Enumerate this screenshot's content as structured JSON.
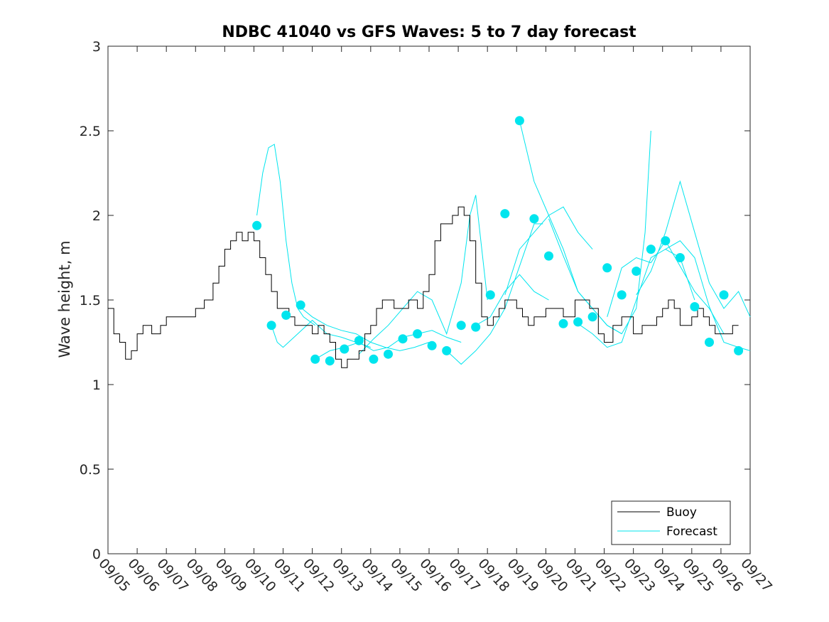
{
  "chart_data": {
    "type": "line",
    "title": "NDBC 41040 vs GFS Waves: 5 to 7 day forecast",
    "xlabel": "",
    "ylabel": "Wave height, m",
    "xlim": [
      0,
      22
    ],
    "ylim": [
      0,
      3
    ],
    "x_tick_labels": [
      "09/05",
      "09/06",
      "09/07",
      "09/08",
      "09/09",
      "09/10",
      "09/11",
      "09/12",
      "09/13",
      "09/14",
      "09/15",
      "09/16",
      "09/17",
      "09/18",
      "09/19",
      "09/20",
      "09/21",
      "09/22",
      "09/23",
      "09/24",
      "09/25",
      "09/26",
      "09/27"
    ],
    "y_ticks": [
      0,
      0.5,
      1,
      1.5,
      2,
      2.5,
      3
    ],
    "y_tick_labels": [
      "0",
      "0.5",
      "1",
      "1.5",
      "2",
      "2.5",
      "3"
    ],
    "x_units": "days since 09/05",
    "legend": {
      "position": "bottom-right",
      "entries": [
        "Buoy",
        "Forecast"
      ]
    },
    "colors": {
      "buoy": "#000000",
      "forecast": "#00e5ee",
      "axes": "#262626"
    },
    "series": [
      {
        "name": "Buoy",
        "x": [
          0,
          0.2,
          0.4,
          0.6,
          0.8,
          1.0,
          1.2,
          1.5,
          1.8,
          2.0,
          2.5,
          2.8,
          3.0,
          3.3,
          3.6,
          3.8,
          4.0,
          4.2,
          4.4,
          4.6,
          4.8,
          5.0,
          5.2,
          5.4,
          5.6,
          5.8,
          6.0,
          6.2,
          6.4,
          6.6,
          6.8,
          7.0,
          7.2,
          7.4,
          7.6,
          7.8,
          8.0,
          8.2,
          8.4,
          8.6,
          8.8,
          9.0,
          9.2,
          9.4,
          9.6,
          9.8,
          10.0,
          10.3,
          10.6,
          10.8,
          11.0,
          11.2,
          11.4,
          11.6,
          11.8,
          12.0,
          12.2,
          12.4,
          12.6,
          12.8,
          13.0,
          13.2,
          13.4,
          13.6,
          13.8,
          14.0,
          14.2,
          14.4,
          14.6,
          14.8,
          15.0,
          15.3,
          15.6,
          15.8,
          16.0,
          16.2,
          16.5,
          16.8,
          17.0,
          17.3,
          17.6,
          17.8,
          18.0,
          18.3,
          18.6,
          18.8,
          19.0,
          19.2,
          19.4,
          19.6,
          19.8,
          20.0,
          20.2,
          20.4,
          20.6,
          20.8,
          21.0,
          21.2,
          21.4,
          21.6
        ],
        "values": [
          1.45,
          1.3,
          1.25,
          1.15,
          1.2,
          1.3,
          1.35,
          1.3,
          1.35,
          1.4,
          1.4,
          1.4,
          1.45,
          1.5,
          1.6,
          1.7,
          1.8,
          1.85,
          1.9,
          1.85,
          1.9,
          1.85,
          1.75,
          1.65,
          1.55,
          1.45,
          1.45,
          1.4,
          1.35,
          1.35,
          1.35,
          1.3,
          1.35,
          1.3,
          1.25,
          1.15,
          1.1,
          1.15,
          1.15,
          1.2,
          1.3,
          1.35,
          1.45,
          1.5,
          1.5,
          1.45,
          1.45,
          1.5,
          1.45,
          1.55,
          1.65,
          1.85,
          1.95,
          1.95,
          2.0,
          2.05,
          2.0,
          1.85,
          1.6,
          1.4,
          1.35,
          1.4,
          1.45,
          1.5,
          1.5,
          1.45,
          1.4,
          1.35,
          1.4,
          1.4,
          1.45,
          1.45,
          1.4,
          1.4,
          1.5,
          1.5,
          1.45,
          1.3,
          1.25,
          1.35,
          1.4,
          1.4,
          1.3,
          1.35,
          1.35,
          1.4,
          1.45,
          1.5,
          1.45,
          1.35,
          1.35,
          1.4,
          1.45,
          1.4,
          1.35,
          1.3,
          1.3,
          1.3,
          1.35,
          1.35
        ]
      },
      {
        "name": "Forecast",
        "runs": [
          {
            "x": [
              5.1,
              5.3,
              5.5,
              5.7,
              5.9,
              6.1,
              6.3,
              6.5,
              6.7,
              7.1
            ],
            "values": [
              2.0,
              2.25,
              2.4,
              2.42,
              2.2,
              1.85,
              1.6,
              1.45,
              1.4,
              1.35
            ]
          },
          {
            "x": [
              5.6,
              5.8,
              6.0,
              6.5,
              7.0,
              7.5,
              8.0,
              8.5,
              9.0
            ],
            "values": [
              1.35,
              1.25,
              1.22,
              1.3,
              1.38,
              1.3,
              1.28,
              1.25,
              1.22
            ]
          },
          {
            "x": [
              6.5,
              7.0,
              7.5,
              8.0,
              8.5,
              9.0,
              9.5,
              10.0,
              10.5,
              11.0
            ],
            "values": [
              1.47,
              1.4,
              1.35,
              1.32,
              1.3,
              1.25,
              1.22,
              1.2,
              1.22,
              1.25
            ]
          },
          {
            "x": [
              7.1,
              7.6,
              8.1,
              8.6,
              9.1,
              9.6,
              10.1,
              10.6,
              11.1,
              11.6,
              12.1
            ],
            "values": [
              1.15,
              1.2,
              1.22,
              1.25,
              1.2,
              1.22,
              1.28,
              1.3,
              1.32,
              1.28,
              1.25
            ]
          },
          {
            "x": [
              8.6,
              9.1,
              9.6,
              10.1,
              10.6,
              11.1,
              11.6,
              12.1,
              12.4,
              12.6,
              13.0
            ],
            "values": [
              1.18,
              1.27,
              1.35,
              1.45,
              1.55,
              1.5,
              1.3,
              1.6,
              2.0,
              2.12,
              1.5
            ]
          },
          {
            "x": [
              11.6,
              12.1,
              12.6,
              13.1,
              13.6,
              14.1,
              14.6,
              14.9
            ],
            "values": [
              1.2,
              1.12,
              1.2,
              1.3,
              1.45,
              1.7,
              1.95,
              1.95
            ]
          },
          {
            "x": [
              12.6,
              13.1,
              13.6,
              14.1,
              14.6,
              15.1
            ],
            "values": [
              1.35,
              1.4,
              1.55,
              1.65,
              1.55,
              1.5
            ]
          },
          {
            "x": [
              13.6,
              14.1,
              14.6,
              15.1,
              15.6,
              16.1,
              16.6
            ],
            "values": [
              1.53,
              1.8,
              1.9,
              2.0,
              2.05,
              1.9,
              1.8
            ]
          },
          {
            "x": [
              14.1,
              14.6,
              15.1,
              15.6,
              16.1,
              16.6,
              17.1,
              17.6
            ],
            "values": [
              2.56,
              2.2,
              2.0,
              1.8,
              1.55,
              1.45,
              1.35,
              1.3
            ]
          },
          {
            "x": [
              15.1,
              15.6,
              16.1,
              16.6,
              17.1,
              17.6,
              18.1,
              18.4,
              18.6
            ],
            "values": [
              1.98,
              1.76,
              1.55,
              1.45,
              1.35,
              1.3,
              1.45,
              1.9,
              2.5
            ]
          },
          {
            "x": [
              16.1,
              16.6,
              17.1,
              17.6,
              18.1,
              18.6,
              19.1,
              19.6,
              20.1
            ],
            "values": [
              1.36,
              1.3,
              1.22,
              1.25,
              1.5,
              1.75,
              1.8,
              1.75,
              1.5
            ]
          },
          {
            "x": [
              17.1,
              17.6,
              18.1,
              18.6,
              19.1,
              19.6,
              20.1,
              20.6,
              21.1
            ],
            "values": [
              1.4,
              1.69,
              1.75,
              1.72,
              1.85,
              1.7,
              1.55,
              1.45,
              1.3
            ]
          },
          {
            "x": [
              18.1,
              18.6,
              19.1,
              19.6,
              20.1,
              20.6,
              21.1,
              21.6,
              22.0
            ],
            "values": [
              1.53,
              1.67,
              1.9,
              2.2,
              1.9,
              1.6,
              1.45,
              1.55,
              1.4
            ]
          },
          {
            "x": [
              19.1,
              19.6,
              20.1,
              20.6,
              21.1,
              21.6,
              22.0
            ],
            "values": [
              1.8,
              1.85,
              1.75,
              1.46,
              1.25,
              1.22,
              1.2
            ]
          }
        ],
        "markers": {
          "x": [
            5.1,
            5.6,
            6.1,
            6.6,
            7.1,
            7.6,
            8.1,
            8.6,
            9.1,
            9.6,
            10.1,
            10.6,
            11.1,
            11.6,
            12.1,
            12.6,
            13.1,
            13.6,
            14.1,
            14.6,
            15.1,
            15.6,
            16.1,
            16.6,
            17.1,
            17.6,
            18.1,
            18.6,
            19.1,
            19.6,
            20.1,
            20.6,
            21.1,
            21.6
          ],
          "values": [
            1.94,
            1.35,
            1.41,
            1.47,
            1.15,
            1.14,
            1.21,
            1.26,
            1.15,
            1.18,
            1.27,
            1.3,
            1.23,
            1.2,
            1.35,
            1.34,
            1.53,
            2.01,
            2.56,
            1.98,
            1.76,
            1.36,
            1.37,
            1.4,
            1.69,
            1.53,
            1.67,
            1.8,
            1.85,
            1.75,
            1.46,
            1.25,
            1.53,
            1.2
          ]
        }
      }
    ]
  }
}
